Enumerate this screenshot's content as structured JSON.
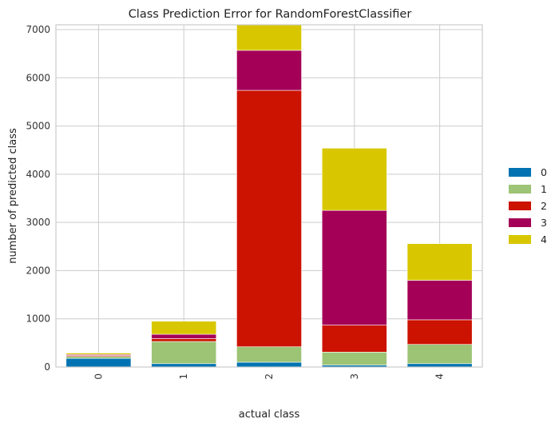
{
  "chart_data": {
    "type": "bar",
    "stacked": true,
    "title": "Class Prediction Error for RandomForestClassifier",
    "xlabel": "actual class",
    "ylabel": "number of predicted class",
    "categories": [
      "0",
      "1",
      "2",
      "3",
      "4"
    ],
    "ylim": [
      0,
      7100
    ],
    "yticks": [
      0,
      1000,
      2000,
      3000,
      4000,
      5000,
      6000,
      7000
    ],
    "grid": true,
    "legend_position": "right",
    "series": [
      {
        "name": "0",
        "color": "#0173b2",
        "values": [
          180,
          70,
          100,
          40,
          70
        ]
      },
      {
        "name": "1",
        "color": "#9dc375",
        "values": [
          40,
          460,
          320,
          270,
          400
        ]
      },
      {
        "name": "2",
        "color": "#cc1200",
        "values": [
          20,
          60,
          5320,
          560,
          510
        ]
      },
      {
        "name": "3",
        "color": "#a40057",
        "values": [
          20,
          90,
          830,
          2380,
          820
        ]
      },
      {
        "name": "4",
        "color": "#d8c700",
        "values": [
          30,
          270,
          550,
          1290,
          760
        ]
      }
    ]
  }
}
